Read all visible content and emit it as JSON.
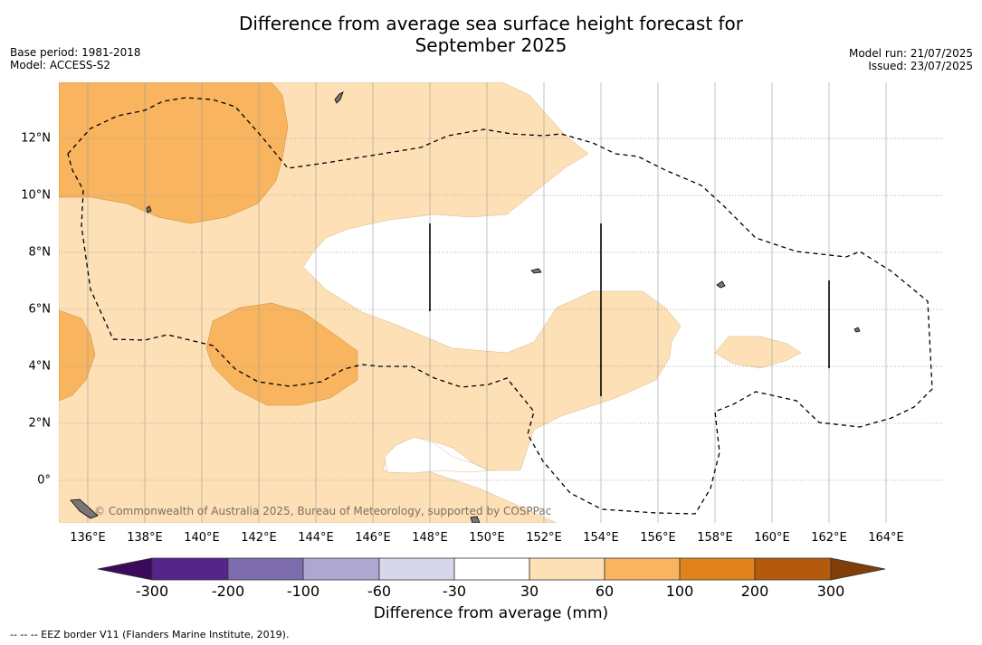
{
  "title": "Difference from average sea surface height forecast for September 2025",
  "title_line1": "Difference from average sea surface height forecast for",
  "title_line2": "September 2025",
  "meta_left": {
    "base_period": "Base period: 1981-2018",
    "model": "Model: ACCESS-S2"
  },
  "meta_right": {
    "model_run": "Model run: 21/07/2025",
    "issued": "Issued: 23/07/2025"
  },
  "credit": "© Commonwealth of Australia 2025, Bureau of Meteorology, supported by COSPPac",
  "colorbar": {
    "title": "Difference from average (mm)",
    "ticks": [
      "-300",
      "-200",
      "-100",
      "-60",
      "-30",
      "30",
      "60",
      "100",
      "200",
      "300"
    ],
    "colors": [
      "#3c0a5a",
      "#55258a",
      "#7d6dae",
      "#aea7d0",
      "#d6d7eb",
      "#ffffff",
      "#fde0b5",
      "#f8b45e",
      "#e0831b",
      "#b35a0c",
      "#7f3d08"
    ]
  },
  "footnote": "-- -- -- EEZ border V11 (Flanders Marine Institute, 2019).",
  "map": {
    "lon_labels": [
      "136°E",
      "138°E",
      "140°E",
      "142°E",
      "144°E",
      "146°E",
      "148°E",
      "150°E",
      "152°E",
      "154°E",
      "156°E",
      "158°E",
      "160°E",
      "162°E",
      "164°E"
    ],
    "lat_labels": [
      "12°N",
      "10°N",
      "8°N",
      "6°N",
      "4°N",
      "2°N",
      "0°"
    ],
    "lon_range": [
      135,
      166
    ],
    "lat_range": [
      -1.5,
      14
    ],
    "background_color": "#ffffff",
    "light_fill": "#fde0b5",
    "medium_fill": "#f8b45e"
  }
}
